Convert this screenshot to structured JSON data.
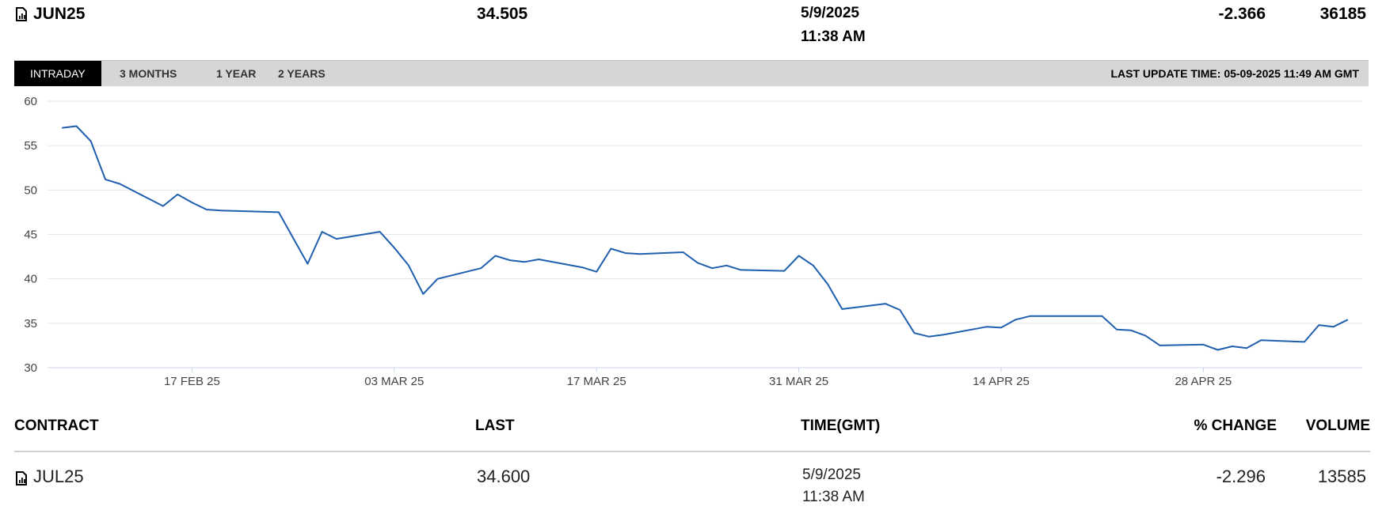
{
  "quote": {
    "contract": "JUN25",
    "last": "34.505",
    "date": "5/9/2025",
    "time": "11:38 AM",
    "change": "-2.366",
    "volume": "36185"
  },
  "tabs": [
    {
      "label": "INTRADAY",
      "active": true
    },
    {
      "label": "3 MONTHS",
      "active": false
    },
    {
      "label": "1 YEAR",
      "active": false
    },
    {
      "label": "2 YEARS",
      "active": false
    }
  ],
  "last_update": "LAST UPDATE TIME: 05-09-2025 11:49 AM GMT",
  "chart_data": {
    "type": "line",
    "title": "",
    "xlabel": "",
    "ylabel": "",
    "ylim": [
      30,
      60
    ],
    "yticks": [
      30,
      35,
      40,
      45,
      50,
      55,
      60
    ],
    "x_range": [
      "2025-02-07",
      "2025-05-09"
    ],
    "xticks": [
      {
        "date": "2025-02-17",
        "label": "17 FEB 25"
      },
      {
        "date": "2025-03-03",
        "label": "03 MAR 25"
      },
      {
        "date": "2025-03-17",
        "label": "17 MAR 25"
      },
      {
        "date": "2025-03-31",
        "label": "31 MAR 25"
      },
      {
        "date": "2025-04-14",
        "label": "14 APR 25"
      },
      {
        "date": "2025-04-28",
        "label": "28 APR 25"
      }
    ],
    "grid": true,
    "line_color": "#1f5fae",
    "series": [
      {
        "points": [
          [
            "2025-02-08",
            57.0
          ],
          [
            "2025-02-09",
            57.2
          ],
          [
            "2025-02-10",
            55.5
          ],
          [
            "2025-02-11",
            51.2
          ],
          [
            "2025-02-12",
            50.7
          ],
          [
            "2025-02-15",
            48.2
          ],
          [
            "2025-02-16",
            49.5
          ],
          [
            "2025-02-17",
            48.6
          ],
          [
            "2025-02-18",
            47.8
          ],
          [
            "2025-02-19",
            47.7
          ],
          [
            "2025-02-23",
            47.5
          ],
          [
            "2025-02-25",
            41.7
          ],
          [
            "2025-02-26",
            45.3
          ],
          [
            "2025-02-27",
            44.5
          ],
          [
            "2025-03-02",
            45.3
          ],
          [
            "2025-03-03",
            43.5
          ],
          [
            "2025-03-04",
            41.5
          ],
          [
            "2025-03-05",
            38.3
          ],
          [
            "2025-03-06",
            40.0
          ],
          [
            "2025-03-09",
            41.2
          ],
          [
            "2025-03-10",
            42.6
          ],
          [
            "2025-03-11",
            42.1
          ],
          [
            "2025-03-12",
            41.9
          ],
          [
            "2025-03-13",
            42.2
          ],
          [
            "2025-03-16",
            41.3
          ],
          [
            "2025-03-17",
            40.8
          ],
          [
            "2025-03-18",
            43.4
          ],
          [
            "2025-03-19",
            42.9
          ],
          [
            "2025-03-20",
            42.8
          ],
          [
            "2025-03-23",
            43.0
          ],
          [
            "2025-03-24",
            41.8
          ],
          [
            "2025-03-25",
            41.2
          ],
          [
            "2025-03-26",
            41.5
          ],
          [
            "2025-03-27",
            41.0
          ],
          [
            "2025-03-30",
            40.9
          ],
          [
            "2025-03-31",
            42.6
          ],
          [
            "2025-04-01",
            41.5
          ],
          [
            "2025-04-02",
            39.4
          ],
          [
            "2025-04-03",
            36.6
          ],
          [
            "2025-04-06",
            37.2
          ],
          [
            "2025-04-07",
            36.5
          ],
          [
            "2025-04-08",
            33.9
          ],
          [
            "2025-04-09",
            33.5
          ],
          [
            "2025-04-10",
            33.7
          ],
          [
            "2025-04-13",
            34.6
          ],
          [
            "2025-04-14",
            34.5
          ],
          [
            "2025-04-15",
            35.4
          ],
          [
            "2025-04-16",
            35.8
          ],
          [
            "2025-04-17",
            35.8
          ],
          [
            "2025-04-21",
            35.8
          ],
          [
            "2025-04-22",
            34.3
          ],
          [
            "2025-04-23",
            34.2
          ],
          [
            "2025-04-24",
            33.6
          ],
          [
            "2025-04-25",
            32.5
          ],
          [
            "2025-04-28",
            32.6
          ],
          [
            "2025-04-29",
            32.0
          ],
          [
            "2025-04-30",
            32.4
          ],
          [
            "2025-05-01",
            32.2
          ],
          [
            "2025-05-02",
            33.1
          ],
          [
            "2025-05-05",
            32.9
          ],
          [
            "2025-05-06",
            34.8
          ],
          [
            "2025-05-07",
            34.6
          ],
          [
            "2025-05-08",
            35.4
          ]
        ]
      }
    ]
  },
  "table": {
    "headers": {
      "contract": "CONTRACT",
      "last": "LAST",
      "time": "TIME(GMT)",
      "change": "% CHANGE",
      "volume": "VOLUME"
    },
    "rows": [
      {
        "contract": "JUL25",
        "last": "34.600",
        "date": "5/9/2025",
        "time": "11:38 AM",
        "change": "-2.296",
        "volume": "13585"
      }
    ]
  }
}
